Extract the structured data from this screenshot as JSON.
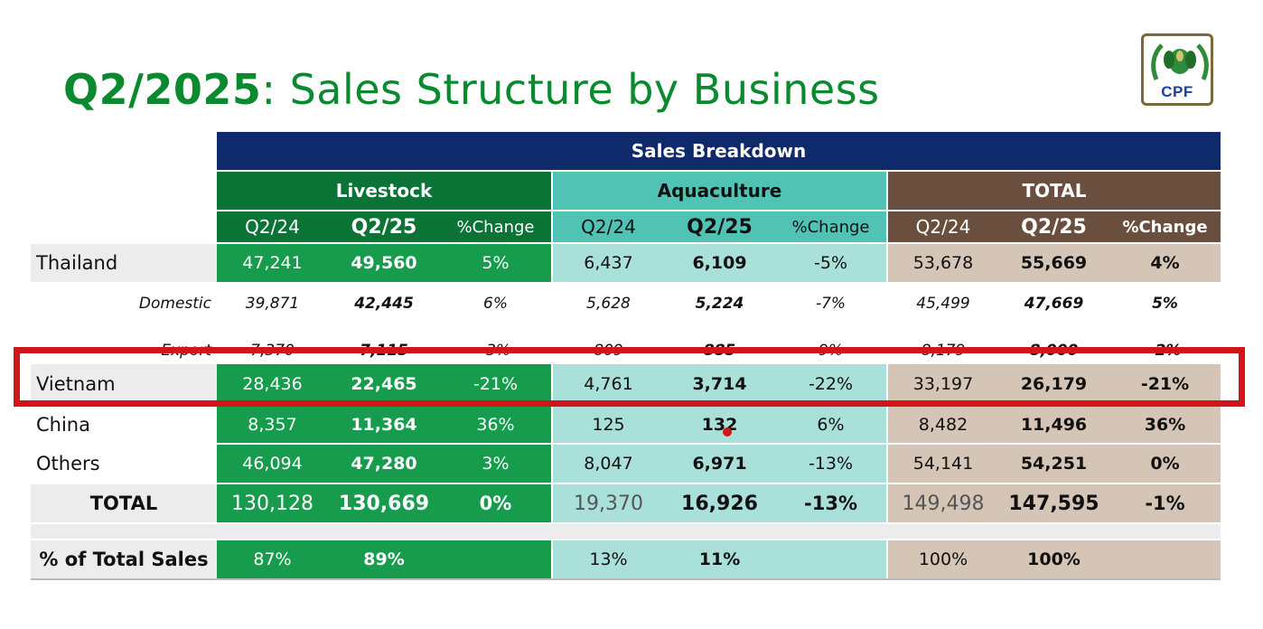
{
  "title": {
    "bold": "Q2/2025",
    "rest": ": Sales Structure by Business"
  },
  "logo": {
    "text": "CPF"
  },
  "table": {
    "header": "Sales Breakdown",
    "groups": [
      "Livestock",
      "Aquaculture",
      "TOTAL"
    ],
    "subheaders": [
      "Q2/24",
      "Q2/25",
      "%Change"
    ],
    "rows": [
      {
        "label": "Thailand",
        "values": [
          "47,241",
          "49,560",
          "5%",
          "6,437",
          "6,109",
          "-5%",
          "53,678",
          "55,669",
          "4%"
        ]
      },
      {
        "label": "Domestic",
        "values": [
          "39,871",
          "42,445",
          "6%",
          "5,628",
          "5,224",
          "-7%",
          "45,499",
          "47,669",
          "5%"
        ]
      },
      {
        "label": "Export",
        "values": [
          "7,370",
          "7,115",
          "-3%",
          "809",
          "885",
          "9%",
          "8,179",
          "8,000",
          "-2%"
        ]
      },
      {
        "label": "Vietnam",
        "values": [
          "28,436",
          "22,465",
          "-21%",
          "4,761",
          "3,714",
          "-22%",
          "33,197",
          "26,179",
          "-21%"
        ]
      },
      {
        "label": "China",
        "values": [
          "8,357",
          "11,364",
          "36%",
          "125",
          "132",
          "6%",
          "8,482",
          "11,496",
          "36%"
        ]
      },
      {
        "label": "Others",
        "values": [
          "46,094",
          "47,280",
          "3%",
          "8,047",
          "6,971",
          "-13%",
          "54,141",
          "54,251",
          "0%"
        ]
      },
      {
        "label": "TOTAL",
        "values": [
          "130,128",
          "130,669",
          "0%",
          "19,370",
          "16,926",
          "-13%",
          "149,498",
          "147,595",
          "-1%"
        ]
      }
    ],
    "share": {
      "label": "% of Total Sales",
      "values": [
        "87%",
        "89%",
        "13%",
        "11%",
        "100%",
        "100%"
      ]
    }
  },
  "colors": {
    "title_green": "#0a8a2e",
    "navy": "#0e2a6b",
    "livestock_green": "#169c4c",
    "aqua_teal": "#a9e1da",
    "total_brown": "#d5c5b6",
    "highlight_red": "#d0161b"
  }
}
